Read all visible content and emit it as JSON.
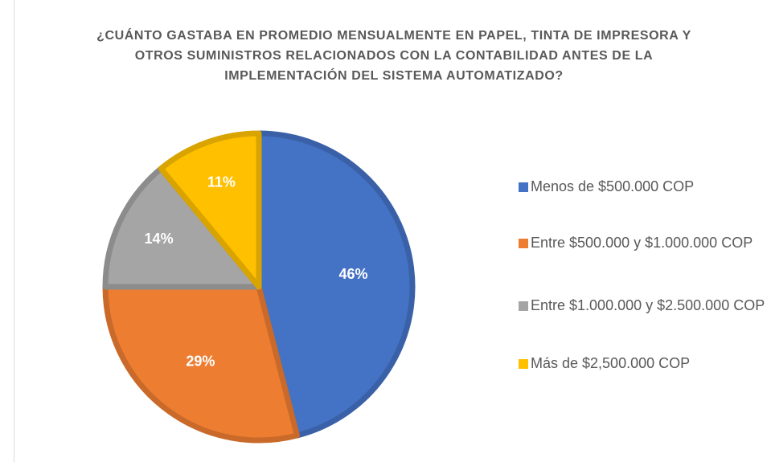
{
  "chart_data": {
    "type": "pie",
    "title": "¿CUÁNTO GASTABA EN PROMEDIO MENSUALMENTE EN PAPEL, TINTA DE IMPRESORA Y OTROS SUMINISTROS RELACIONADOS CON LA CONTABILIDAD ANTES DE LA IMPLEMENTACIÓN DEL SISTEMA AUTOMATIZADO?",
    "categories": [
      "Menos de $500.000 COP",
      "Entre $500.000 y $1.000.000 COP",
      "Entre $1.000.000 y $2.500.000 COP",
      "Más de $2,500.000 COP"
    ],
    "values": [
      46,
      29,
      14,
      11
    ],
    "value_labels": [
      "46%",
      "29%",
      "14%",
      "11%"
    ],
    "colors": [
      "#4472c4",
      "#ed7d31",
      "#a5a5a5",
      "#ffc000"
    ],
    "legend": "right"
  }
}
